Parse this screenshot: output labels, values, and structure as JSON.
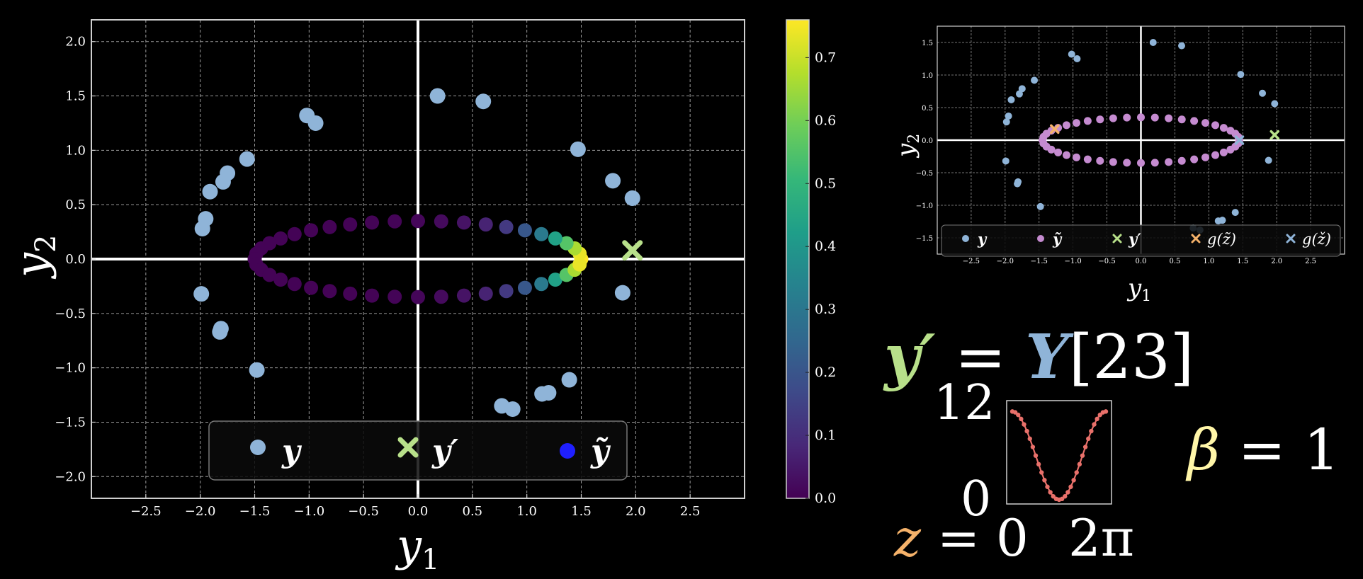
{
  "colors": {
    "background": "#000000",
    "y_points": "#8fb4d8",
    "y_tilde_points": "#c58bd0",
    "y_prime_marker": "#b8e08a",
    "g_z_tilde_marker": "#f5b26a",
    "g_z_check_marker": "#8fb4d8",
    "legend_y_tilde_main": "#1f1fff",
    "beta_text": "#fff6a8",
    "z_text": "#f5b26a",
    "sparkline": "#e8706a",
    "grid": "#9a9a9a",
    "axes_frame": "#cfcfcf",
    "viridis": [
      "#440154",
      "#482878",
      "#3e4a89",
      "#31688e",
      "#26828e",
      "#1f9e89",
      "#35b779",
      "#6dcd59",
      "#b4de2c",
      "#fde725"
    ]
  },
  "chart_data": [
    {
      "type": "scatter",
      "xlabel": "y1",
      "ylabel": "y2",
      "xlim": [
        -3.0,
        3.0
      ],
      "ylim": [
        -2.2,
        2.2
      ],
      "xticks": [
        -2.5,
        -2.0,
        -1.5,
        -1.0,
        -0.5,
        0.0,
        0.5,
        1.0,
        1.5,
        2.0,
        2.5
      ],
      "yticks": [
        -2.0,
        -1.5,
        -1.0,
        -0.5,
        0.0,
        0.5,
        1.0,
        1.5,
        2.0
      ],
      "grid": true,
      "legend_placement": "bottom-center",
      "legend": [
        "y",
        "y'",
        "ỹ"
      ],
      "series": [
        {
          "name": "y",
          "marker": "circle",
          "points": [
            [
              0.18,
              1.5
            ],
            [
              0.6,
              1.45
            ],
            [
              -1.02,
              1.32
            ],
            [
              -0.94,
              1.25
            ],
            [
              1.47,
              1.01
            ],
            [
              -1.57,
              0.92
            ],
            [
              -1.75,
              0.79
            ],
            [
              -1.79,
              0.71
            ],
            [
              -1.91,
              0.62
            ],
            [
              1.79,
              0.72
            ],
            [
              1.97,
              0.56
            ],
            [
              -1.95,
              0.37
            ],
            [
              -1.98,
              0.28
            ],
            [
              -1.99,
              -0.32
            ],
            [
              1.88,
              -0.31
            ],
            [
              -1.81,
              -0.64
            ],
            [
              -1.82,
              -0.67
            ],
            [
              -1.48,
              -1.02
            ],
            [
              1.39,
              -1.11
            ],
            [
              1.2,
              -1.23
            ],
            [
              1.14,
              -1.24
            ],
            [
              0.77,
              -1.35
            ],
            [
              0.87,
              -1.38
            ]
          ]
        },
        {
          "name": "y'",
          "marker": "x",
          "points": [
            [
              1.97,
              0.08
            ]
          ]
        },
        {
          "name": "ỹ",
          "marker": "circle",
          "colored_by": "colorbar",
          "ellipse": {
            "center": [
              0.0,
              0.0
            ],
            "radius_x": 1.5,
            "radius_y": 0.35,
            "n_points": 44
          },
          "color_values_note": "peaks near y1=1.5"
        }
      ],
      "colorbar": {
        "colormap": "viridis",
        "range": [
          0.0,
          0.76
        ],
        "ticks": [
          "0.0",
          "0.1",
          "0.2",
          "0.3",
          "0.4",
          "0.5",
          "0.6",
          "0.7"
        ]
      }
    },
    {
      "type": "scatter",
      "xlabel": "y1",
      "ylabel": "y2",
      "xlim": [
        -3.0,
        3.0
      ],
      "ylim": [
        -1.75,
        1.75
      ],
      "xticks": [
        -2.5,
        -2.0,
        -1.5,
        -1.0,
        -0.5,
        0.0,
        0.5,
        1.0,
        1.5,
        2.0,
        2.5
      ],
      "yticks": [
        -1.5,
        -1.0,
        -0.5,
        0.0,
        0.5,
        1.0,
        1.5
      ],
      "grid": true,
      "legend_placement": "bottom",
      "legend": [
        "y",
        "ỹ",
        "y'",
        "g(z̃)",
        "g(ž)"
      ],
      "series": [
        {
          "name": "y",
          "marker": "circle",
          "same_as_main": true
        },
        {
          "name": "ỹ",
          "marker": "circle",
          "ellipse": {
            "center": [
              0.0,
              0.0
            ],
            "radius_x": 1.45,
            "radius_y": 0.35,
            "n_points": 44
          }
        },
        {
          "name": "y'",
          "marker": "x",
          "points": [
            [
              1.97,
              0.08
            ]
          ]
        },
        {
          "name": "g(z̃)",
          "marker": "x",
          "points": [
            [
              -1.27,
              0.17
            ]
          ]
        },
        {
          "name": "g(ž)",
          "marker": "x",
          "points": [
            [
              1.45,
              0.0
            ]
          ]
        }
      ]
    },
    {
      "type": "line",
      "x_range": [
        0,
        6.2832
      ],
      "ylim": [
        0,
        12
      ],
      "y_tick_labels": [
        "12",
        "0"
      ],
      "x_tick_labels": [
        "0",
        "2π"
      ],
      "n_points": 33,
      "shape": "U-curve, 6·(1+cos z)"
    }
  ],
  "labels": {
    "main_xlabel": "y",
    "main_xlabel_sub": "1",
    "main_ylabel": "y",
    "main_ylabel_sub": "2",
    "small_xlabel": "y",
    "small_xlabel_sub": "1",
    "small_ylabel": "y",
    "small_ylabel_sub": "2",
    "main_legend": {
      "y": "y",
      "y_prime": "y′",
      "y_tilde": "ỹ"
    },
    "small_legend": {
      "y": "y",
      "y_tilde": "ỹ",
      "y_prime": "y′",
      "g_z_tilde": "g(z̃)",
      "g_z_check": "g(ž)"
    }
  },
  "equations": {
    "y_prime_lhs": "y′",
    "equals": "=",
    "Y": "Y",
    "index": "[23]",
    "spark_top": "12",
    "spark_bottom": "0",
    "z_label": "z",
    "z_equals": "= 0",
    "two_pi": "2π",
    "beta_label": "β",
    "beta_equals": "= 1"
  }
}
